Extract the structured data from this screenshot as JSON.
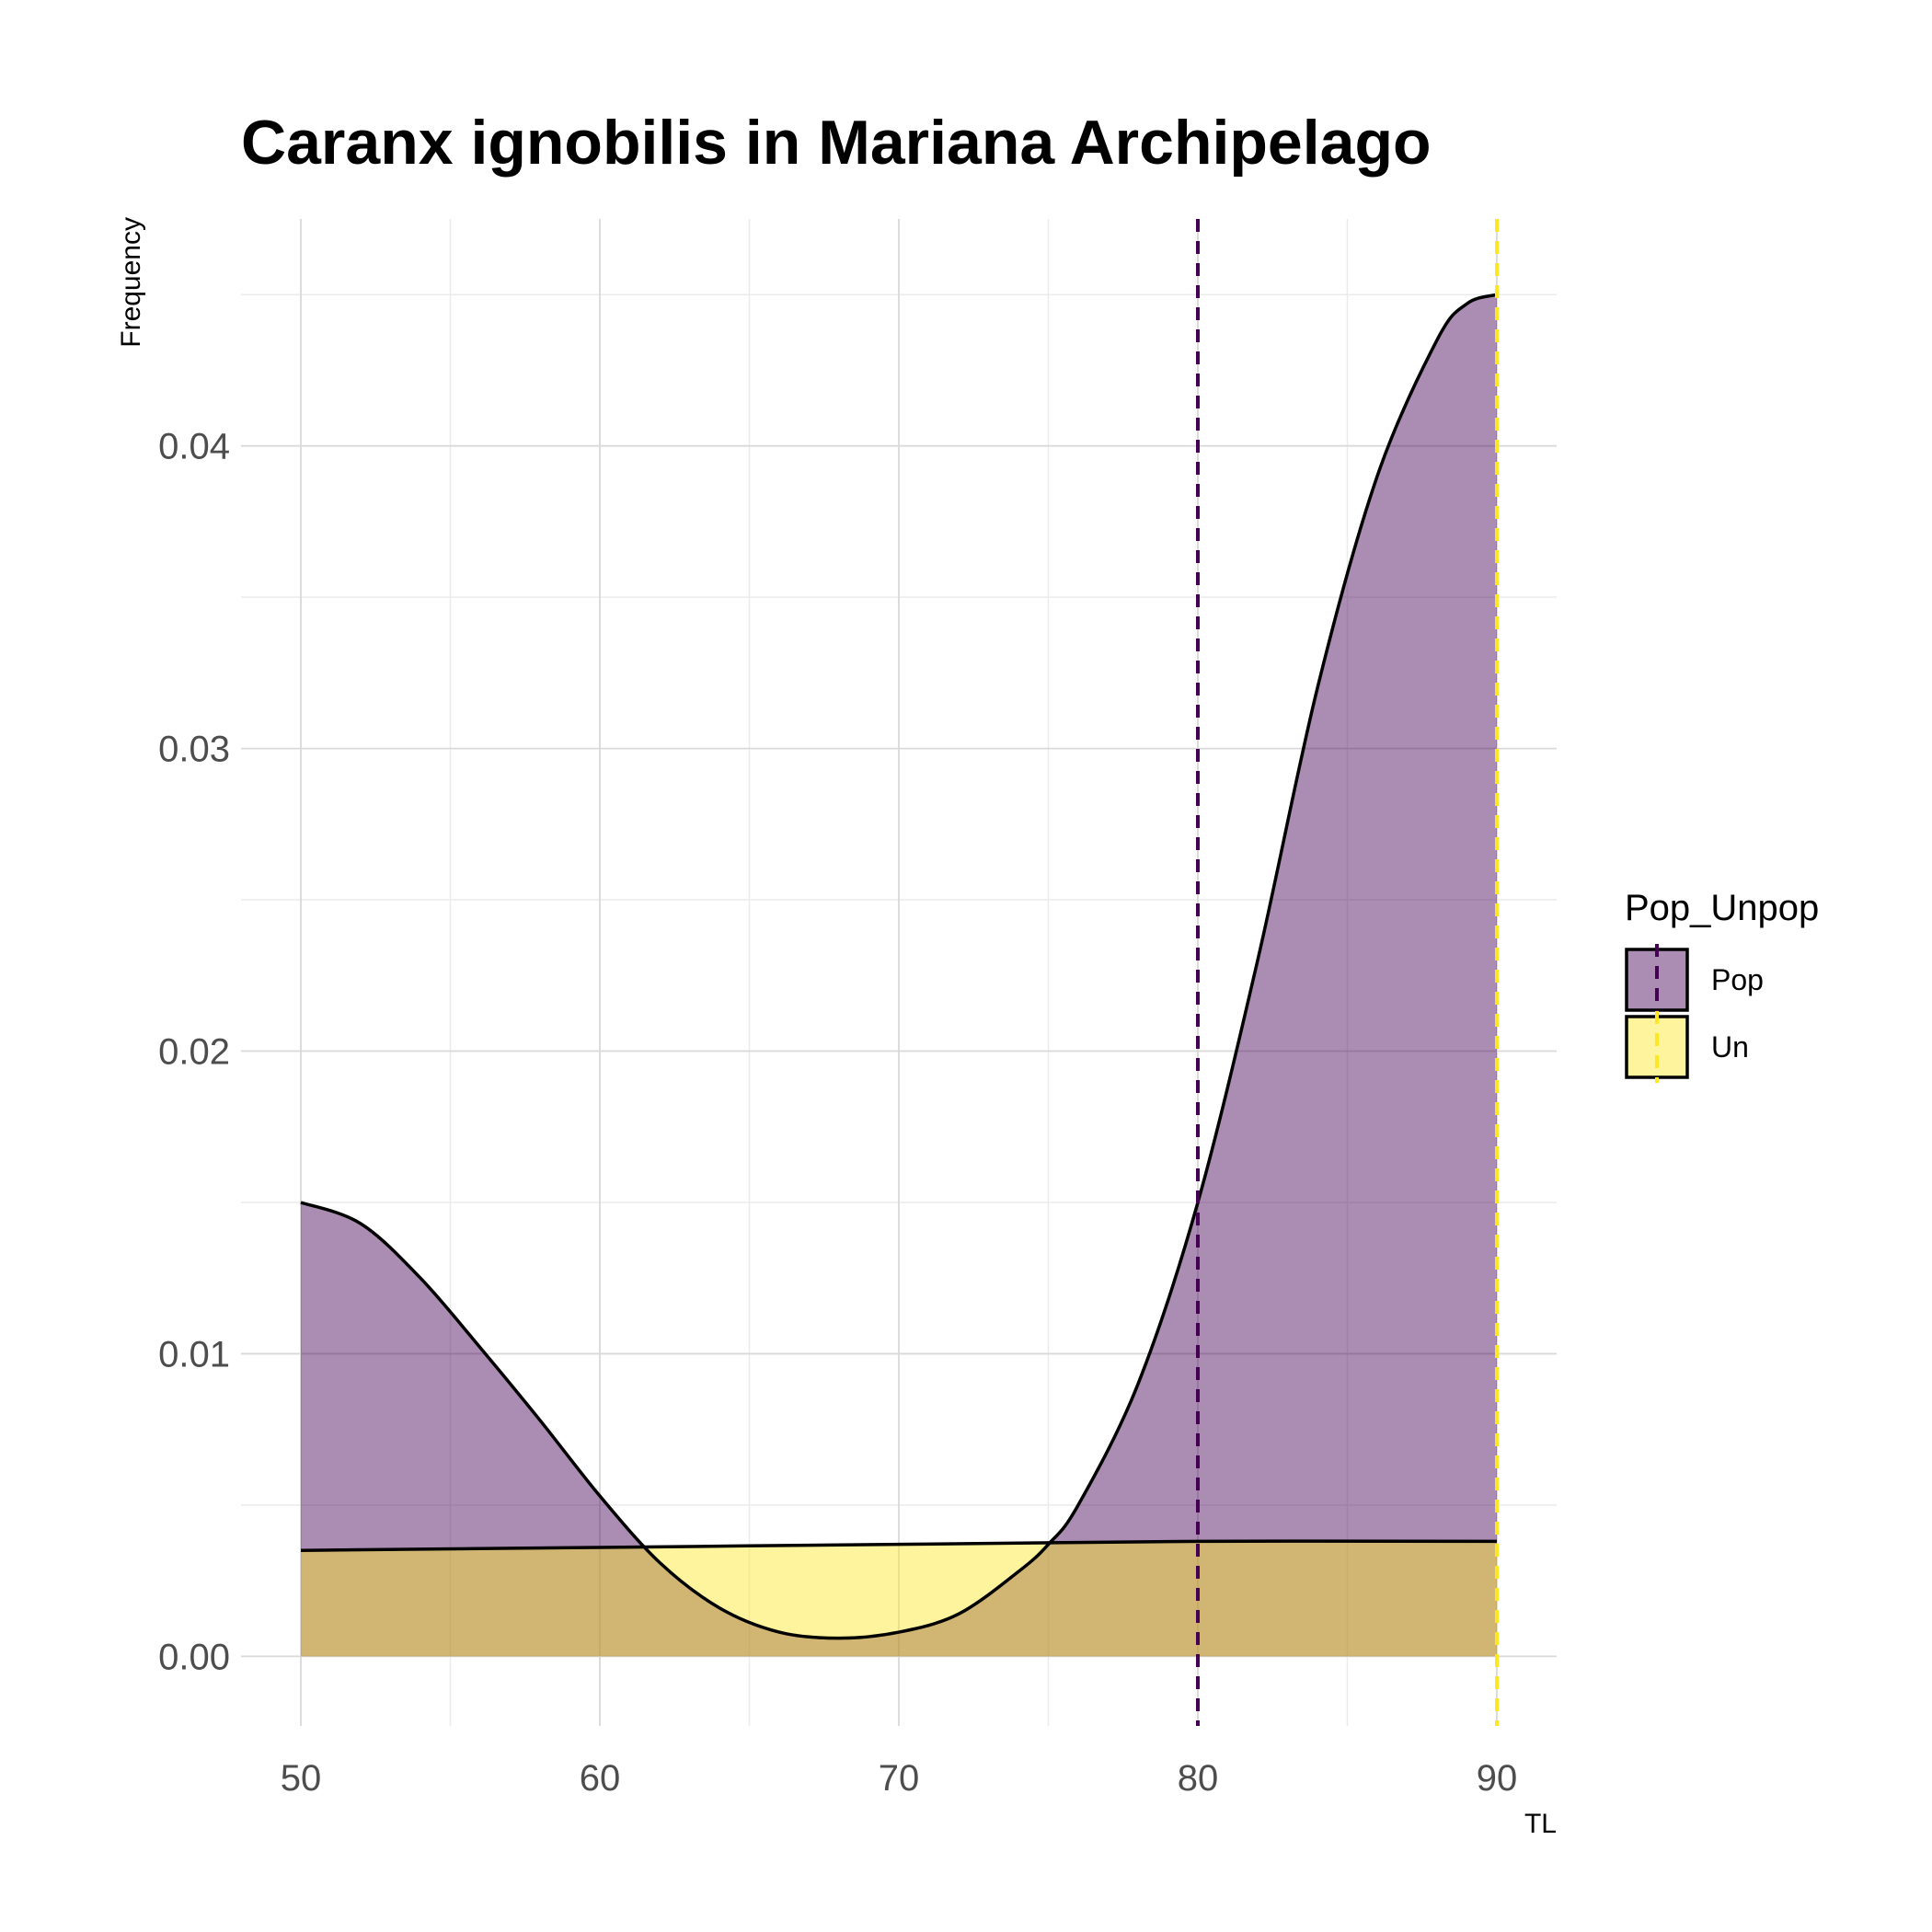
{
  "chart_data": {
    "type": "area",
    "title": "Caranx ignobilis in Mariana Archipelago",
    "xlabel": "TL",
    "ylabel": "Frequency",
    "xlim": [
      48,
      92
    ],
    "ylim": [
      -0.0023,
      0.0475
    ],
    "x_ticks": [
      50,
      60,
      70,
      80,
      90
    ],
    "x_tick_labels": [
      "50",
      "60",
      "70",
      "80",
      "90"
    ],
    "y_ticks": [
      0.0,
      0.01,
      0.02,
      0.03,
      0.04
    ],
    "y_tick_labels": [
      "0.00",
      "0.01",
      "0.02",
      "0.03",
      "0.04"
    ],
    "grid": true,
    "legend": {
      "title": "Pop_Unpop",
      "position": "right",
      "entries": [
        "Pop",
        "Un"
      ]
    },
    "series": [
      {
        "name": "Pop",
        "fill": "#440154",
        "fill_opacity": 0.45,
        "x": [
          50,
          52,
          54,
          56,
          58,
          60,
          62,
          64,
          66,
          68,
          70,
          72,
          74,
          75,
          76,
          78,
          80,
          82,
          84,
          86,
          88,
          89,
          90
        ],
        "y": [
          0.015,
          0.0143,
          0.0125,
          0.0102,
          0.0078,
          0.0053,
          0.0031,
          0.0016,
          0.0008,
          0.0006,
          0.0008,
          0.0014,
          0.0028,
          0.0037,
          0.005,
          0.009,
          0.015,
          0.023,
          0.032,
          0.039,
          0.0435,
          0.0447,
          0.045
        ],
        "mean_line": 80,
        "mean_line_color": "#440154"
      },
      {
        "name": "Un",
        "fill": "#fde725",
        "fill_opacity": 0.45,
        "x": [
          50,
          60,
          70,
          80,
          90
        ],
        "y": [
          0.0035,
          0.0036,
          0.0037,
          0.0038,
          0.0038
        ],
        "mean_line": 90,
        "mean_line_color": "#fde725"
      }
    ]
  }
}
